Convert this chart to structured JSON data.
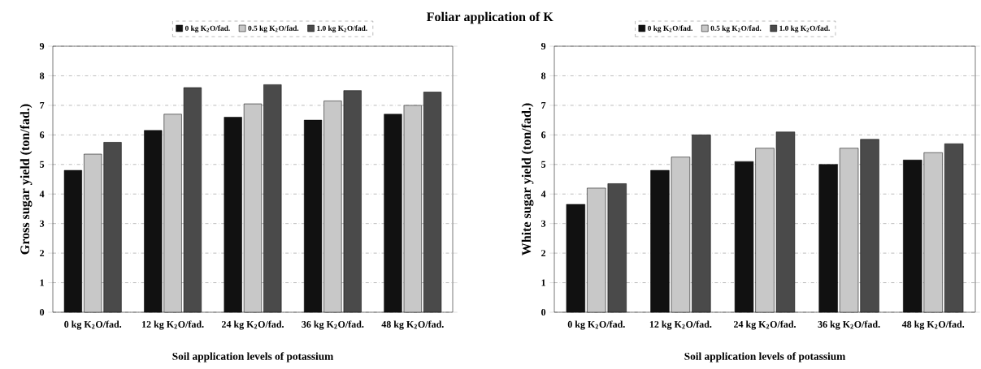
{
  "chart_data": [
    {
      "type": "bar",
      "title": "Foliar application of K",
      "xlabel": "Soil application levels of potassium",
      "ylabel": "Gross sugar yield (ton/fad.)",
      "categories": [
        "0 kg K$_{2}$O/fad.",
        "12 kg K$_{2}$O/fad.",
        "24 kg K$_{2}$O/fad.",
        "36 kg K$_{2}$O/fad.",
        "48 kg K$_{2}$O/fad."
      ],
      "series": [
        {
          "name": "0 kg K$_{2}$O/fad.",
          "color": "#111111",
          "values": [
            4.8,
            6.15,
            6.6,
            6.5,
            6.7
          ]
        },
        {
          "name": "0.5 kg K$_{2}$O/fad.",
          "color": "#c8c8c8",
          "values": [
            5.35,
            6.7,
            7.05,
            7.15,
            7.0
          ]
        },
        {
          "name": "1.0 kg K$_{2}$O/fad.",
          "color": "#4a4a4a",
          "values": [
            5.75,
            7.6,
            7.7,
            7.5,
            7.45
          ]
        }
      ],
      "ylim": [
        0,
        9
      ],
      "yticks": [
        0,
        1,
        2,
        3,
        4,
        5,
        6,
        7,
        8,
        9
      ],
      "grid": "y",
      "legend": "top"
    },
    {
      "type": "bar",
      "xlabel": "Soil application levels of potassium",
      "ylabel": "White sugar yield (ton/fad.)",
      "categories": [
        "0 kg K$_{2}$O/fad.",
        "12 kg K$_{2}$O/fad.",
        "24 kg K$_{2}$O/fad.",
        "36 kg K$_{2}$O/fad.",
        "48 kg K$_{2}$O/fad."
      ],
      "series": [
        {
          "name": "0 kg K$_{2}$O/fad.",
          "color": "#111111",
          "values": [
            3.65,
            4.8,
            5.1,
            5.0,
            5.15
          ]
        },
        {
          "name": "0.5 kg K$_{2}$O/fad.",
          "color": "#c8c8c8",
          "values": [
            4.2,
            5.25,
            5.55,
            5.55,
            5.4
          ]
        },
        {
          "name": "1.0 kg K$_{2}$O/fad.",
          "color": "#4a4a4a",
          "values": [
            4.35,
            6.0,
            6.1,
            5.85,
            5.7
          ]
        }
      ],
      "ylim": [
        0,
        9
      ],
      "yticks": [
        0,
        1,
        2,
        3,
        4,
        5,
        6,
        7,
        8,
        9
      ],
      "grid": "y",
      "legend": "top"
    }
  ]
}
